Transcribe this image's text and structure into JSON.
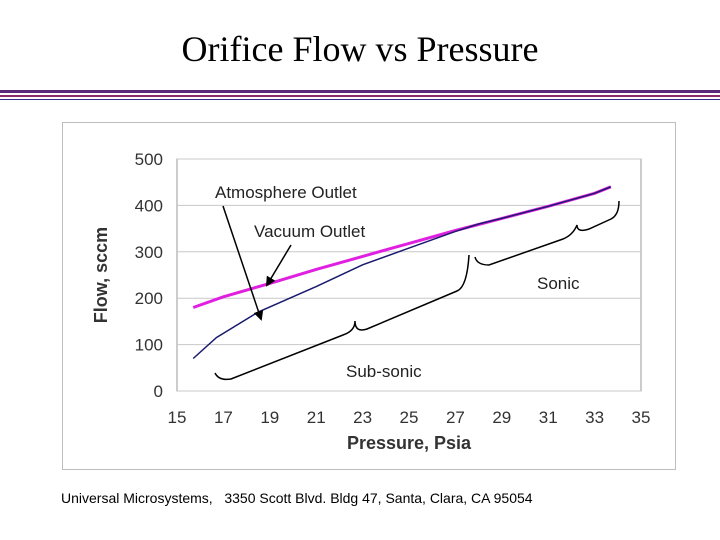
{
  "slide": {
    "title": "Orifice Flow vs Pressure",
    "footer": "Universal Microsystems,   3350 Scott Blvd. Bldg 47, Santa, Clara, CA 95054"
  },
  "colors": {
    "atmosphere": "#e020e0",
    "vacuum": "#1a1a6e",
    "grid": "#c8c8c8",
    "axis_text": "#333333"
  },
  "chart_data": {
    "type": "line",
    "title": "",
    "xlabel": "Pressure,  Psia",
    "ylabel": "Flow, sccm",
    "xlim": [
      15,
      35
    ],
    "ylim": [
      0,
      500
    ],
    "xticks": [
      15,
      17,
      19,
      21,
      23,
      25,
      27,
      29,
      31,
      33,
      35
    ],
    "yticks": [
      0,
      100,
      200,
      300,
      400,
      500
    ],
    "grid": "horizontal",
    "series": [
      {
        "name": "Atmosphere Outlet",
        "color": "#e020e0",
        "x": [
          15.7,
          17,
          19,
          21,
          23,
          25,
          27,
          29,
          31,
          33,
          33.7
        ],
        "y": [
          180,
          203,
          232,
          262,
          290,
          318,
          346,
          372,
          398,
          426,
          440
        ]
      },
      {
        "name": "Vacuum Outlet",
        "color": "#1a1a6e",
        "x": [
          15.7,
          16.7,
          18.5,
          21,
          23,
          25,
          27,
          28,
          29,
          31,
          33,
          33.7
        ],
        "y": [
          70,
          115,
          170,
          225,
          272,
          308,
          344,
          360,
          372,
          398,
          426,
          440
        ]
      }
    ],
    "annotations": {
      "atmosphere_label": "Atmosphere Outlet",
      "vacuum_label": "Vacuum Outlet",
      "sonic_label": "Sonic",
      "subsonic_label": "Sub-sonic"
    }
  }
}
